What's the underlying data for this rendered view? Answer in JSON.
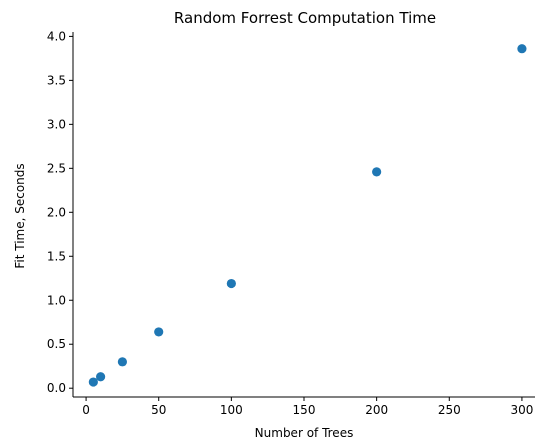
{
  "chart_data": {
    "type": "scatter",
    "title": "Random Forrest Computation Time",
    "xlabel": "Number of Trees",
    "ylabel": "Fit Time, Seconds",
    "xlim": [
      -9,
      309
    ],
    "ylim": [
      -0.1,
      4.05
    ],
    "xticks": [
      0,
      50,
      100,
      150,
      200,
      250,
      300
    ],
    "yticks": [
      0.0,
      0.5,
      1.0,
      1.5,
      2.0,
      2.5,
      3.0,
      3.5,
      4.0
    ],
    "xtick_labels": [
      "0",
      "50",
      "100",
      "150",
      "200",
      "250",
      "300"
    ],
    "ytick_labels": [
      "0.0",
      "0.5",
      "1.0",
      "1.5",
      "2.0",
      "2.5",
      "3.0",
      "3.5",
      "4.0"
    ],
    "grid": false,
    "marker_color": "#1f77b4",
    "series": [
      {
        "x": [
          5,
          10,
          25,
          50,
          100,
          200,
          300
        ],
        "y": [
          0.07,
          0.13,
          0.3,
          0.64,
          1.19,
          2.46,
          3.86
        ]
      }
    ]
  }
}
